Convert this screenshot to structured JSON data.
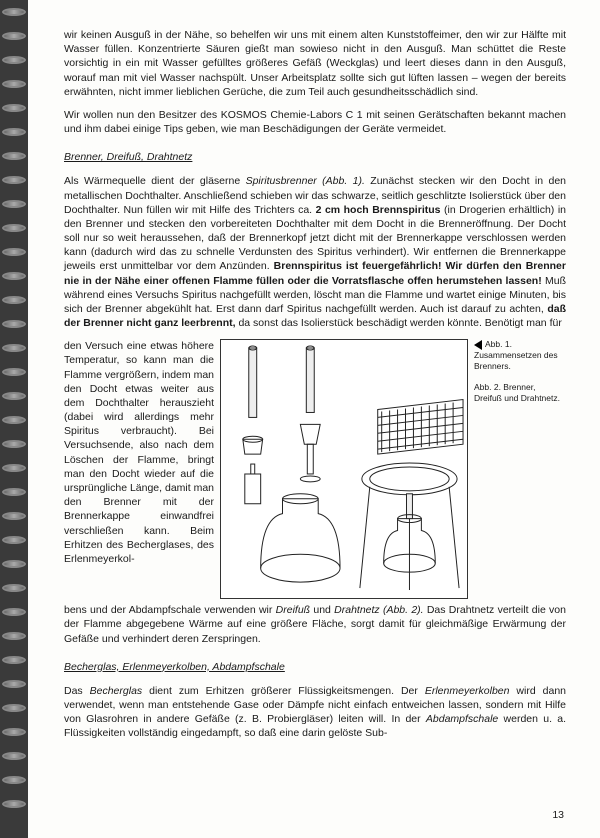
{
  "intro": {
    "p1": "wir keinen Ausguß in der Nähe, so behelfen wir uns mit einem alten Kunststoffeimer, den wir zur Hälfte mit Wasser füllen. Konzentrierte Säuren gießt man sowieso nicht in den Ausguß. Man schüttet die Reste vorsichtig in ein mit Wasser gefülltes größeres Gefäß (Weckglas) und leert dieses dann in den Ausguß, worauf man mit viel Wasser nachspült. Unser Arbeitsplatz sollte sich gut lüften lassen – wegen der bereits erwähnten, nicht immer lieblichen Gerüche, die zum Teil auch gesundheitsschädlich sind.",
    "p2": "Wir wollen nun den Besitzer des KOSMOS Chemie-Labors C 1 mit seinen Gerätschaften bekannt machen und ihm dabei einige Tips geben, wie man Beschädigungen der Geräte vermeidet."
  },
  "section1": {
    "heading": "Brenner, Dreifuß, Drahtnetz",
    "p1a": "Als Wärmequelle dient der gläserne ",
    "p1b_em": "Spiritusbrenner (Abb. 1).",
    "p1c": " Zunächst stecken wir den Docht in den metallischen Dochthalter. Anschließend schieben wir das schwarze, seitlich geschlitzte Isolierstück über den Dochthalter. Nun füllen wir mit Hilfe des Trichters ca. ",
    "p1d_b": "2 cm hoch Brennspiritus",
    "p1e": " (in Drogerien erhältlich) in den Brenner und stecken den vorbereiteten Dochthalter mit dem Docht in die Brenneröffnung. Der Docht soll nur so weit heraussehen, daß der Brennerkopf jetzt dicht mit der Brennerkappe verschlossen werden kann (dadurch wird das zu schnelle Verdunsten des Spiritus verhindert). Wir entfernen die Brennerkappe jeweils erst unmittelbar vor dem Anzünden. ",
    "p1f_b": "Brennspiritus ist feuergefährlich! Wir dürfen den Brenner nie in der Nähe einer offenen Flamme füllen oder die Vorratsflasche offen herumstehen lassen!",
    "p1g": " Muß während eines Versuchs Spiritus nachgefüllt werden, löscht man die Flamme und wartet einige Minuten, bis sich der Brenner abgekühlt hat. Erst dann darf Spiritus nachgefüllt werden. Auch ist darauf zu achten, ",
    "p1h_b": "daß der Brenner nicht ganz leerbrennt,",
    "p1i": " da sonst das Isolierstück beschädigt werden könnte. Benötigt man für",
    "wrapcol": "den Versuch eine etwas höhere Temperatur, so kann man die Flamme vergrößern, indem man den Docht etwas weiter aus dem Dochthalter herauszieht (dabei wird allerdings mehr Spiritus verbraucht). Bei Versuchsende, also nach dem Löschen der Flamme, bringt man den Docht wieder auf die ursprüngliche Länge, damit man den Brenner mit der Brennerkappe einwandfrei verschließen kann.\nBeim Erhitzen des Becherglases, des Erlenmeyerkol-",
    "p3a": "bens und der Abdampfschale verwenden wir ",
    "p3b_em": "Dreifuß",
    "p3c": " und ",
    "p3d_em": "Drahtnetz (Abb. 2).",
    "p3e": " Das Drahtnetz verteilt die von der Flamme abgegebene Wärme auf eine größere Fläche, sorgt damit für gleichmäßige Erwärmung der Gefäße und verhindert deren Zerspringen."
  },
  "captions": {
    "c1": "Abb. 1. Zusammensetzen des Brenners.",
    "c2": "Abb. 2. Brenner, Dreifuß und Drahtnetz."
  },
  "section2": {
    "heading": "Becherglas, Erlenmeyerkolben, Abdampfschale",
    "p1a": "Das ",
    "p1b_em": "Becherglas",
    "p1c": " dient zum Erhitzen größerer Flüssigkeitsmengen. Der ",
    "p1d_em": "Erlenmeyerkolben",
    "p1e": " wird dann verwendet, wenn man entstehende Gase oder Dämpfe nicht einfach entweichen lassen, sondern mit Hilfe von Glasrohren in andere Gefäße (z. B. Probiergläser) leiten will. In der ",
    "p1f_em": "Abdampfschale",
    "p1g": " werden u. a. Flüssigkeiten vollständig eingedampft, so daß eine darin gelöste Sub-"
  },
  "pagenum": "13"
}
